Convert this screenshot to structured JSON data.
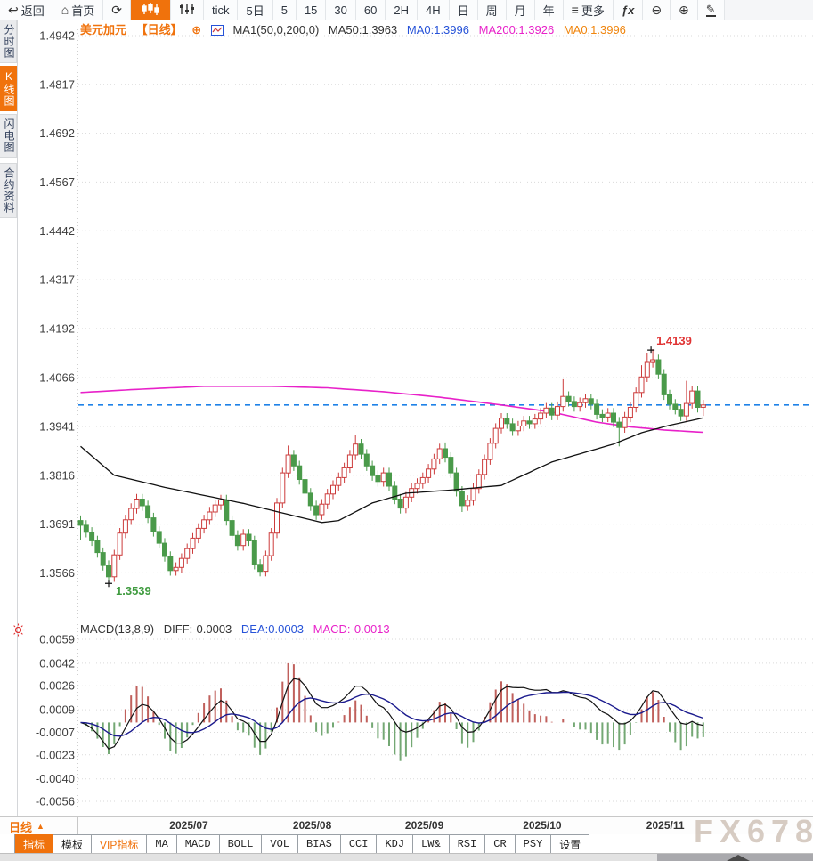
{
  "colors": {
    "accent": "#f0720c",
    "up": "#cc3b3b",
    "down": "#4a9a4a",
    "ma200_line": "#e821c9",
    "ma50_line": "#111111",
    "dea_line": "#1b1b8e",
    "diff_line": "#111111",
    "last_price_line": "#1f82e8",
    "hist_up": "#c0605c",
    "hist_down": "#74a874",
    "annotation_high": "#e03333",
    "annotation_low": "#3f9b3f"
  },
  "toolbar": {
    "items": [
      {
        "label": "返回",
        "icon": "back-arrow"
      },
      {
        "label": "首页",
        "icon": "home"
      },
      {
        "label": "",
        "icon": "refresh"
      },
      {
        "label": "",
        "icon": "kline-chart",
        "active": true
      },
      {
        "label": "",
        "icon": "indicator-sliders"
      },
      {
        "label": "tick"
      },
      {
        "label": "5日"
      },
      {
        "label": "5"
      },
      {
        "label": "15"
      },
      {
        "label": "30"
      },
      {
        "label": "60"
      },
      {
        "label": "2H"
      },
      {
        "label": "4H"
      },
      {
        "label": "日"
      },
      {
        "label": "周"
      },
      {
        "label": "月"
      },
      {
        "label": "年"
      },
      {
        "label": "更多",
        "icon": "menu"
      },
      {
        "label": "",
        "icon": "fx"
      },
      {
        "label": "",
        "icon": "zoom-out"
      },
      {
        "label": "",
        "icon": "zoom-in"
      },
      {
        "label": "",
        "icon": "draw-pen"
      }
    ]
  },
  "sidebar": {
    "items": [
      {
        "label": "分时图",
        "active": false
      },
      {
        "label": "K线图",
        "active": true
      },
      {
        "label": "闪电图",
        "active": false
      },
      {
        "label": "合约资料",
        "active": false
      }
    ]
  },
  "price_header": {
    "symbol": "美元加元",
    "period_tag": "【日线】",
    "plus_icon": "⊕",
    "ma_label": "MA1(50,0,200,0)",
    "ma50": "MA50:1.3963",
    "ma0_blue": "MA0:1.3996",
    "ma200": "MA200:1.3926",
    "ma0_orange": "MA0:1.3996"
  },
  "macd_header": {
    "title": "MACD(13,8,9)",
    "diff": "DIFF:-0.0003",
    "dea": "DEA:0.0003",
    "macd": "MACD:-0.0013"
  },
  "chart_data": {
    "type": "candlestick+macd",
    "symbol": "美元加元",
    "timeframe": "日线",
    "price_pane": {
      "y_ticks": [
        1.4942,
        1.4817,
        1.4692,
        1.4567,
        1.4442,
        1.4317,
        1.4192,
        1.4066,
        1.3941,
        1.3816,
        1.3691,
        1.3566
      ],
      "last_price": 1.3996,
      "high_annotation": "1.4139",
      "high_annotation_index": 102,
      "low_annotation": "1.3539",
      "low_annotation_index": 5,
      "first_open": 1.37,
      "default_wick": 0.0013,
      "closes": [
        1.3688,
        1.367,
        1.3648,
        1.3618,
        1.3585,
        1.3556,
        1.3612,
        1.3668,
        1.3702,
        1.3731,
        1.3755,
        1.3738,
        1.3707,
        1.3672,
        1.3642,
        1.3608,
        1.3572,
        1.358,
        1.3603,
        1.3628,
        1.3655,
        1.368,
        1.3702,
        1.3722,
        1.374,
        1.3753,
        1.37,
        1.3662,
        1.3636,
        1.3665,
        1.3648,
        1.3588,
        1.357,
        1.361,
        1.3668,
        1.3745,
        1.3822,
        1.3868,
        1.384,
        1.3805,
        1.377,
        1.3738,
        1.3715,
        1.3742,
        1.3768,
        1.379,
        1.381,
        1.3835,
        1.3868,
        1.3896,
        1.387,
        1.384,
        1.3815,
        1.38,
        1.3822,
        1.3788,
        1.3755,
        1.3732,
        1.376,
        1.3782,
        1.3795,
        1.381,
        1.3832,
        1.3858,
        1.3884,
        1.3862,
        1.3822,
        1.3775,
        1.3738,
        1.3752,
        1.3782,
        1.3818,
        1.3856,
        1.3898,
        1.3936,
        1.3962,
        1.3948,
        1.393,
        1.3942,
        1.3955,
        1.3948,
        1.396,
        1.3975,
        1.3988,
        1.397,
        1.3992,
        1.4018,
        1.4005,
        1.3992,
        1.4002,
        1.4012,
        1.3998,
        1.3972,
        1.3965,
        1.3975,
        1.3952,
        1.3938,
        1.3965,
        1.399,
        1.4028,
        1.4068,
        1.4105,
        1.4112,
        1.4075,
        1.4022,
        1.3998,
        1.3985,
        1.3968,
        1.4,
        1.4032,
        1.399,
        1.3996
      ],
      "wick_overrides": {
        "0": {
          "low": 1.365
        },
        "5": {
          "low": 1.3539
        },
        "37": {
          "high": 1.3892
        },
        "49": {
          "high": 1.392
        },
        "57": {
          "low": 1.3718
        },
        "65": {
          "high": 1.39
        },
        "68": {
          "low": 1.3722
        },
        "75": {
          "high": 1.3975
        },
        "86": {
          "high": 1.4062
        },
        "96": {
          "low": 1.389
        },
        "100": {
          "high": 1.4098
        },
        "101": {
          "high": 1.4128
        },
        "102": {
          "high": 1.4139
        },
        "108": {
          "high": 1.4058
        },
        "111": {
          "low": 1.3968
        }
      },
      "ma50_waypoints": [
        [
          0,
          1.389
        ],
        [
          6,
          1.3816
        ],
        [
          15,
          1.3785
        ],
        [
          29,
          1.3744
        ],
        [
          43,
          1.3695
        ],
        [
          46,
          1.37
        ],
        [
          52,
          1.3745
        ],
        [
          58,
          1.377
        ],
        [
          66,
          1.3778
        ],
        [
          75,
          1.379
        ],
        [
          84,
          1.385
        ],
        [
          95,
          1.3896
        ],
        [
          100,
          1.3925
        ],
        [
          105,
          1.3944
        ],
        [
          111,
          1.3963
        ]
      ],
      "ma200_waypoints": [
        [
          0,
          1.4028
        ],
        [
          10,
          1.4036
        ],
        [
          22,
          1.4044
        ],
        [
          34,
          1.4044
        ],
        [
          44,
          1.404
        ],
        [
          54,
          1.403
        ],
        [
          64,
          1.4016
        ],
        [
          74,
          1.3998
        ],
        [
          84,
          1.3978
        ],
        [
          92,
          1.3952
        ],
        [
          98,
          1.394
        ],
        [
          104,
          1.3932
        ],
        [
          111,
          1.3926
        ]
      ]
    },
    "macd_pane": {
      "params": [
        13,
        8,
        9
      ],
      "y_ticks": [
        0.0059,
        0.0042,
        0.0026,
        0.0009,
        -0.0007,
        -0.0023,
        -0.004,
        -0.0056
      ],
      "diff": -0.0003,
      "dea": 0.0003,
      "macd": -0.0013
    },
    "x_labels": [
      "2025/07",
      "2025/08",
      "2025/09",
      "2025/10",
      "2025/11"
    ],
    "x_label_indices": [
      16,
      38,
      58,
      79,
      101
    ]
  },
  "bottom": {
    "period_label": "日线",
    "dropdown_arrow": "▲",
    "tabs": [
      {
        "label": "指标",
        "active": true
      },
      {
        "label": "模板"
      },
      {
        "label": "VIP指标",
        "vip": true
      },
      {
        "label": "MA"
      },
      {
        "label": "MACD"
      },
      {
        "label": "BOLL"
      },
      {
        "label": "VOL"
      },
      {
        "label": "BIAS"
      },
      {
        "label": "CCI"
      },
      {
        "label": "KDJ"
      },
      {
        "label": "LW&"
      },
      {
        "label": "RSI"
      },
      {
        "label": "CR"
      },
      {
        "label": "PSY"
      },
      {
        "label": "设置"
      }
    ],
    "watermark": "FX678"
  }
}
